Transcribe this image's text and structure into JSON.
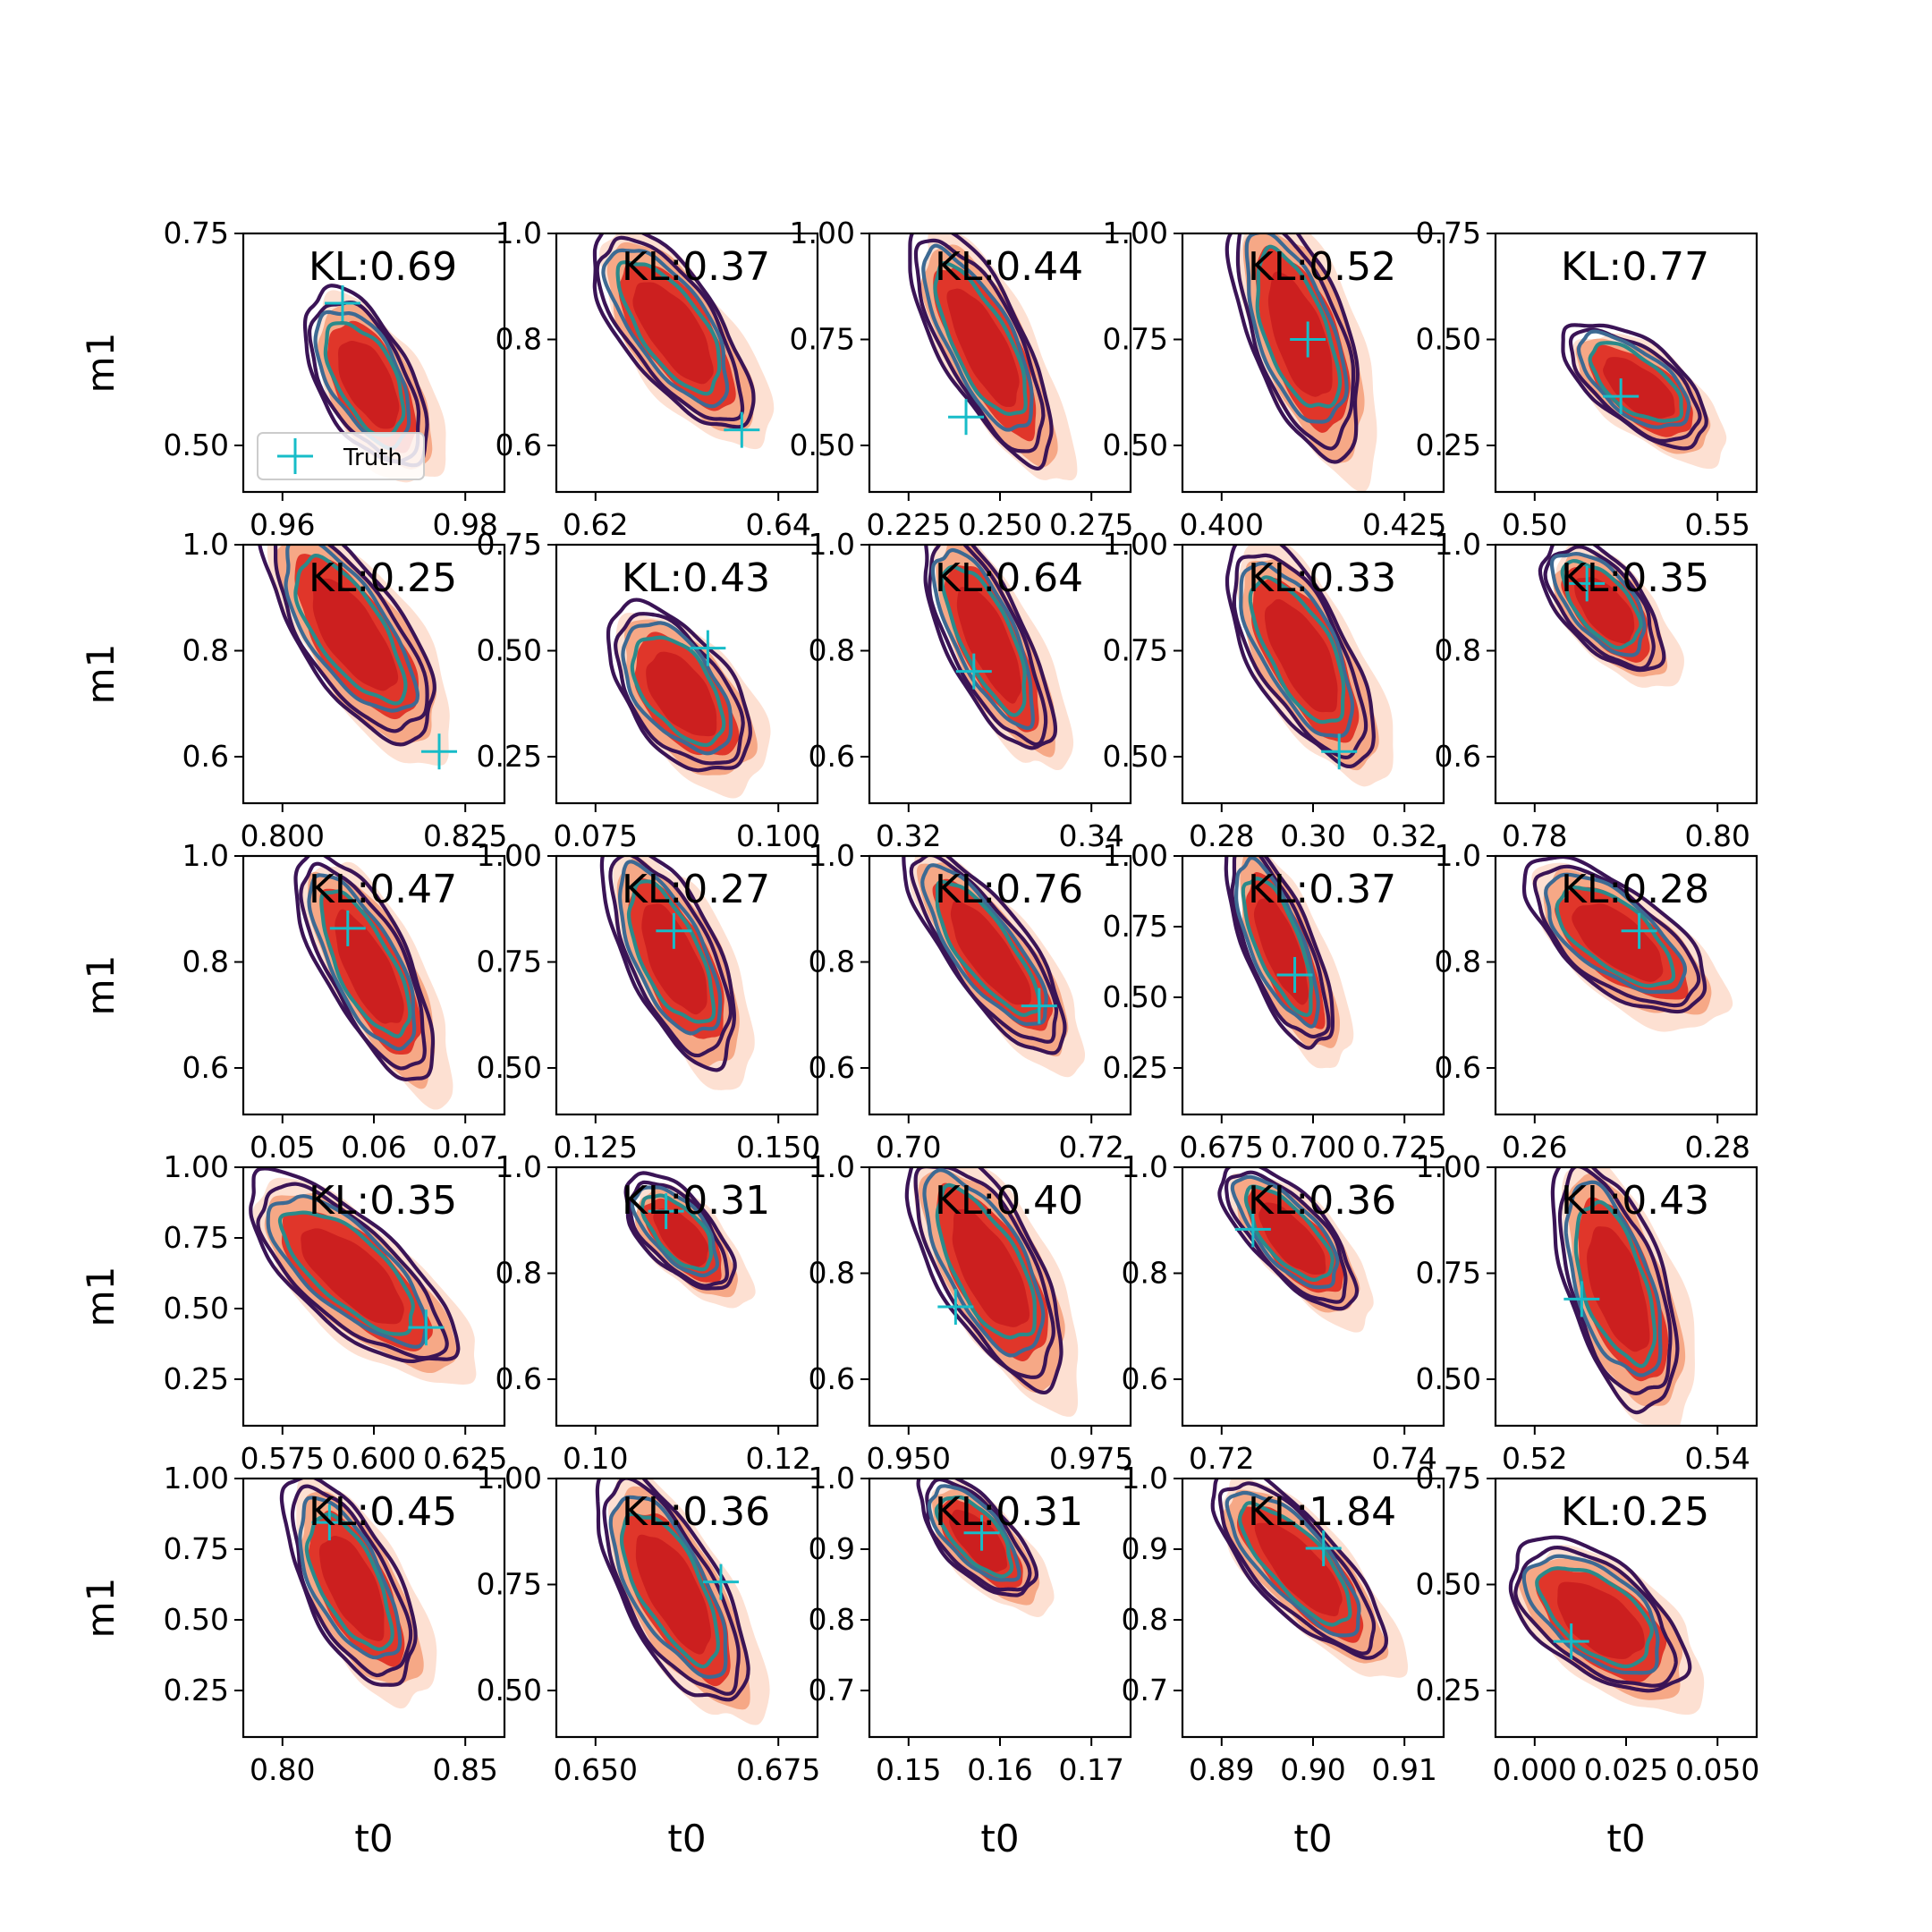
{
  "figure": {
    "legend_label": "Truth",
    "colors": {
      "fill_outer": "#fde0d2",
      "fill_mid": "#f6a886",
      "fill_inner": "#e0362a",
      "fill_core": "#cc1f1f",
      "contour_outer": "#3a1456",
      "contour_mid": "#3d6a93",
      "contour_inner": "#2b8a8a",
      "truth": "#17bcc8",
      "axis": "#000000"
    }
  },
  "chart_data": [
    {
      "type": "contour",
      "row": 0,
      "col": 0,
      "annotation": "KL:0.69",
      "xticks": [
        "0.96",
        "0.98"
      ],
      "yticks": [
        "0.75",
        "0.50"
      ],
      "ylabel": "m1",
      "xlabel": "",
      "legend": "lower-left"
    },
    {
      "type": "contour",
      "row": 0,
      "col": 1,
      "annotation": "KL:0.37",
      "xticks": [
        "0.62",
        "0.64"
      ],
      "yticks": [
        "1.0",
        "0.8",
        "0.6"
      ],
      "ylabel": "",
      "xlabel": ""
    },
    {
      "type": "contour",
      "row": 0,
      "col": 2,
      "annotation": "KL:0.44",
      "xticks": [
        "0.225",
        "0.250",
        "0.275"
      ],
      "yticks": [
        "1.00",
        "0.75",
        "0.50"
      ],
      "ylabel": "",
      "xlabel": ""
    },
    {
      "type": "contour",
      "row": 0,
      "col": 3,
      "annotation": "KL:0.52",
      "xticks": [
        "0.400",
        "0.425"
      ],
      "yticks": [
        "1.00",
        "0.75",
        "0.50"
      ],
      "ylabel": "",
      "xlabel": ""
    },
    {
      "type": "contour",
      "row": 0,
      "col": 4,
      "annotation": "KL:0.77",
      "xticks": [
        "0.50",
        "0.55"
      ],
      "yticks": [
        "0.75",
        "0.50",
        "0.25"
      ],
      "ylabel": "",
      "xlabel": ""
    },
    {
      "type": "contour",
      "row": 1,
      "col": 0,
      "annotation": "KL:0.25",
      "xticks": [
        "0.800",
        "0.825"
      ],
      "yticks": [
        "1.0",
        "0.8",
        "0.6"
      ],
      "ylabel": "m1",
      "xlabel": ""
    },
    {
      "type": "contour",
      "row": 1,
      "col": 1,
      "annotation": "KL:0.43",
      "xticks": [
        "0.075",
        "0.100"
      ],
      "yticks": [
        "0.75",
        "0.50",
        "0.25"
      ],
      "ylabel": "",
      "xlabel": ""
    },
    {
      "type": "contour",
      "row": 1,
      "col": 2,
      "annotation": "KL:0.64",
      "xticks": [
        "0.32",
        "0.34"
      ],
      "yticks": [
        "1.0",
        "0.8",
        "0.6"
      ],
      "ylabel": "",
      "xlabel": ""
    },
    {
      "type": "contour",
      "row": 1,
      "col": 3,
      "annotation": "KL:0.33",
      "xticks": [
        "0.28",
        "0.30",
        "0.32"
      ],
      "yticks": [
        "1.00",
        "0.75",
        "0.50"
      ],
      "ylabel": "",
      "xlabel": ""
    },
    {
      "type": "contour",
      "row": 1,
      "col": 4,
      "annotation": "KL:0.35",
      "xticks": [
        "0.78",
        "0.80"
      ],
      "yticks": [
        "1.0",
        "0.8",
        "0.6"
      ],
      "ylabel": "",
      "xlabel": ""
    },
    {
      "type": "contour",
      "row": 2,
      "col": 0,
      "annotation": "KL:0.47",
      "xticks": [
        "0.05",
        "0.06",
        "0.07"
      ],
      "yticks": [
        "1.0",
        "0.8",
        "0.6"
      ],
      "ylabel": "m1",
      "xlabel": ""
    },
    {
      "type": "contour",
      "row": 2,
      "col": 1,
      "annotation": "KL:0.27",
      "xticks": [
        "0.125",
        "0.150"
      ],
      "yticks": [
        "1.00",
        "0.75",
        "0.50"
      ],
      "ylabel": "",
      "xlabel": ""
    },
    {
      "type": "contour",
      "row": 2,
      "col": 2,
      "annotation": "KL:0.76",
      "xticks": [
        "0.70",
        "0.72"
      ],
      "yticks": [
        "1.0",
        "0.8",
        "0.6"
      ],
      "ylabel": "",
      "xlabel": ""
    },
    {
      "type": "contour",
      "row": 2,
      "col": 3,
      "annotation": "KL:0.37",
      "xticks": [
        "0.675",
        "0.700",
        "0.725"
      ],
      "yticks": [
        "1.00",
        "0.75",
        "0.50",
        "0.25"
      ],
      "ylabel": "",
      "xlabel": ""
    },
    {
      "type": "contour",
      "row": 2,
      "col": 4,
      "annotation": "KL:0.28",
      "xticks": [
        "0.26",
        "0.28"
      ],
      "yticks": [
        "1.0",
        "0.8",
        "0.6"
      ],
      "ylabel": "",
      "xlabel": ""
    },
    {
      "type": "contour",
      "row": 3,
      "col": 0,
      "annotation": "KL:0.35",
      "xticks": [
        "0.575",
        "0.600",
        "0.625"
      ],
      "yticks": [
        "1.00",
        "0.75",
        "0.50",
        "0.25"
      ],
      "ylabel": "m1",
      "xlabel": ""
    },
    {
      "type": "contour",
      "row": 3,
      "col": 1,
      "annotation": "KL:0.31",
      "xticks": [
        "0.10",
        "0.12"
      ],
      "yticks": [
        "1.0",
        "0.8",
        "0.6"
      ],
      "ylabel": "",
      "xlabel": ""
    },
    {
      "type": "contour",
      "row": 3,
      "col": 2,
      "annotation": "KL:0.40",
      "xticks": [
        "0.950",
        "0.975"
      ],
      "yticks": [
        "1.0",
        "0.8",
        "0.6"
      ],
      "ylabel": "",
      "xlabel": ""
    },
    {
      "type": "contour",
      "row": 3,
      "col": 3,
      "annotation": "KL:0.36",
      "xticks": [
        "0.72",
        "0.74"
      ],
      "yticks": [
        "1.0",
        "0.8",
        "0.6"
      ],
      "ylabel": "",
      "xlabel": ""
    },
    {
      "type": "contour",
      "row": 3,
      "col": 4,
      "annotation": "KL:0.43",
      "xticks": [
        "0.52",
        "0.54"
      ],
      "yticks": [
        "1.00",
        "0.75",
        "0.50"
      ],
      "ylabel": "",
      "xlabel": ""
    },
    {
      "type": "contour",
      "row": 4,
      "col": 0,
      "annotation": "KL:0.45",
      "xticks": [
        "0.80",
        "0.85"
      ],
      "yticks": [
        "1.00",
        "0.75",
        "0.50",
        "0.25"
      ],
      "ylabel": "m1",
      "xlabel": "t0"
    },
    {
      "type": "contour",
      "row": 4,
      "col": 1,
      "annotation": "KL:0.36",
      "xticks": [
        "0.650",
        "0.675"
      ],
      "yticks": [
        "1.00",
        "0.75",
        "0.50"
      ],
      "ylabel": "",
      "xlabel": "t0"
    },
    {
      "type": "contour",
      "row": 4,
      "col": 2,
      "annotation": "KL:0.31",
      "xticks": [
        "0.15",
        "0.16",
        "0.17"
      ],
      "yticks": [
        "1.0",
        "0.9",
        "0.8",
        "0.7"
      ],
      "ylabel": "",
      "xlabel": "t0"
    },
    {
      "type": "contour",
      "row": 4,
      "col": 3,
      "annotation": "KL:1.84",
      "xticks": [
        "0.89",
        "0.90",
        "0.91"
      ],
      "yticks": [
        "1.0",
        "0.9",
        "0.8",
        "0.7"
      ],
      "ylabel": "",
      "xlabel": "t0"
    },
    {
      "type": "contour",
      "row": 4,
      "col": 4,
      "annotation": "KL:0.25",
      "xticks": [
        "0.000",
        "0.025",
        "0.050"
      ],
      "yticks": [
        "0.75",
        "0.50",
        "0.25"
      ],
      "ylabel": "",
      "xlabel": "t0"
    }
  ]
}
